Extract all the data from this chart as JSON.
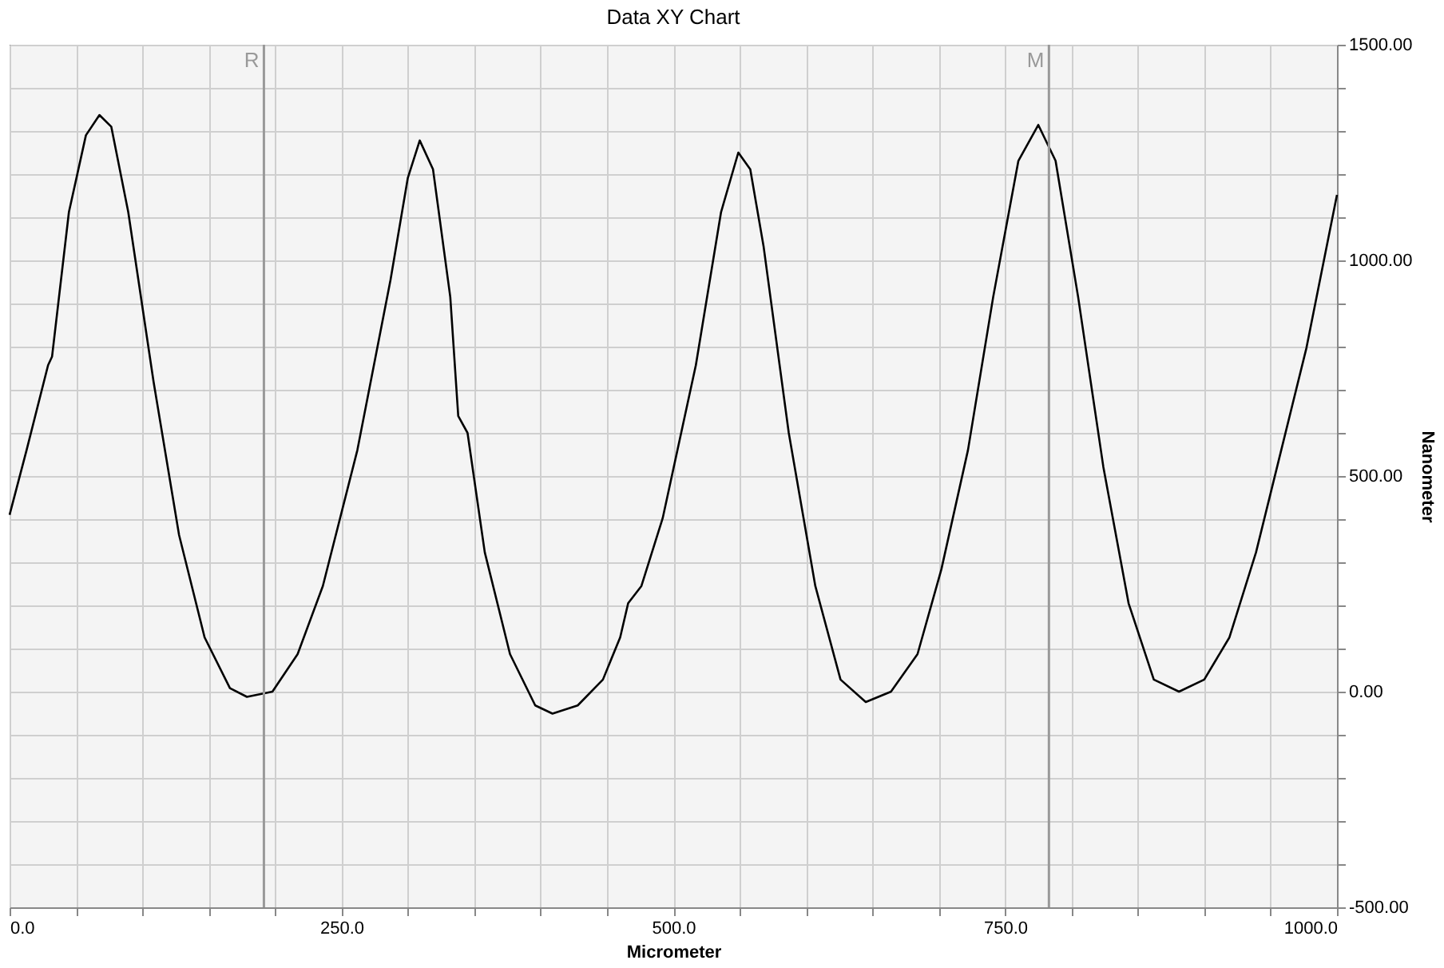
{
  "chart_data": {
    "type": "line",
    "title": "Data XY Chart",
    "xlabel": "Micrometer",
    "ylabel": "Nanometer",
    "x": [
      0,
      12.8,
      29,
      32,
      44.7,
      57.5,
      67.7,
      76.6,
      89.4,
      108.5,
      127.7,
      146.9,
      166,
      178.8,
      198,
      217,
      236,
      262,
      287,
      300,
      309,
      319,
      332,
      338,
      345,
      358,
      377,
      396,
      409,
      428,
      447,
      460,
      466,
      476,
      492,
      517,
      536,
      549,
      558,
      568,
      587,
      607,
      626,
      645,
      664,
      684,
      702,
      722,
      741,
      760,
      775,
      788,
      805,
      824,
      843,
      862,
      881,
      900,
      919,
      939,
      958,
      977,
      1000
    ],
    "series": [
      {
        "color": "#000000",
        "values": [
          410,
          560,
          757,
          777,
          1112,
          1290,
          1337,
          1310,
          1112,
          718,
          363,
          126,
          8,
          -12,
          0,
          87,
          245,
          560,
          955,
          1191,
          1278,
          1211,
          915,
          639,
          600,
          323,
          87,
          -32,
          -51,
          -32,
          28,
          126,
          205,
          245,
          402,
          757,
          1112,
          1250,
          1211,
          1033,
          600,
          245,
          28,
          -24,
          0,
          87,
          284,
          560,
          915,
          1231,
          1314,
          1231,
          915,
          521,
          205,
          28,
          0,
          28,
          126,
          323,
          560,
          797,
          1152
        ]
      }
    ],
    "xlim": [
      0,
      1000
    ],
    "xticks": [
      {
        "value": 0,
        "label": "0.0"
      },
      {
        "value": 50,
        "label": null
      },
      {
        "value": 100,
        "label": null
      },
      {
        "value": 150,
        "label": null
      },
      {
        "value": 200,
        "label": null
      },
      {
        "value": 250,
        "label": "250.0"
      },
      {
        "value": 300,
        "label": null
      },
      {
        "value": 350,
        "label": null
      },
      {
        "value": 400,
        "label": null
      },
      {
        "value": 450,
        "label": null
      },
      {
        "value": 500,
        "label": "500.0"
      },
      {
        "value": 550,
        "label": null
      },
      {
        "value": 600,
        "label": null
      },
      {
        "value": 650,
        "label": null
      },
      {
        "value": 700,
        "label": null
      },
      {
        "value": 750,
        "label": "750.0"
      },
      {
        "value": 800,
        "label": null
      },
      {
        "value": 850,
        "label": null
      },
      {
        "value": 900,
        "label": null
      },
      {
        "value": 950,
        "label": null
      },
      {
        "value": 1000,
        "label": "1000.0"
      }
    ],
    "ylim": [
      -500,
      1500
    ],
    "yticks": [
      {
        "value": -500,
        "label": "-500.00"
      },
      {
        "value": -400,
        "label": null
      },
      {
        "value": -300,
        "label": null
      },
      {
        "value": -200,
        "label": null
      },
      {
        "value": -100,
        "label": null
      },
      {
        "value": 0,
        "label": "0.00"
      },
      {
        "value": 100,
        "label": null
      },
      {
        "value": 200,
        "label": null
      },
      {
        "value": 300,
        "label": null
      },
      {
        "value": 400,
        "label": null
      },
      {
        "value": 500,
        "label": "500.00"
      },
      {
        "value": 600,
        "label": null
      },
      {
        "value": 700,
        "label": null
      },
      {
        "value": 800,
        "label": null
      },
      {
        "value": 900,
        "label": null
      },
      {
        "value": 1000,
        "label": "1000.00"
      },
      {
        "value": 1100,
        "label": null
      },
      {
        "value": 1200,
        "label": null
      },
      {
        "value": 1300,
        "label": null
      },
      {
        "value": 1400,
        "label": null
      },
      {
        "value": 1500,
        "label": "1500.00"
      }
    ],
    "grid": true,
    "legend": false,
    "marker": "none",
    "line_style": "solid",
    "ref_lines": [
      {
        "axis": "x",
        "value": 191.6,
        "label": "R",
        "color": "#999999"
      },
      {
        "axis": "x",
        "value": 783,
        "label": "M",
        "color": "#999999"
      }
    ]
  }
}
